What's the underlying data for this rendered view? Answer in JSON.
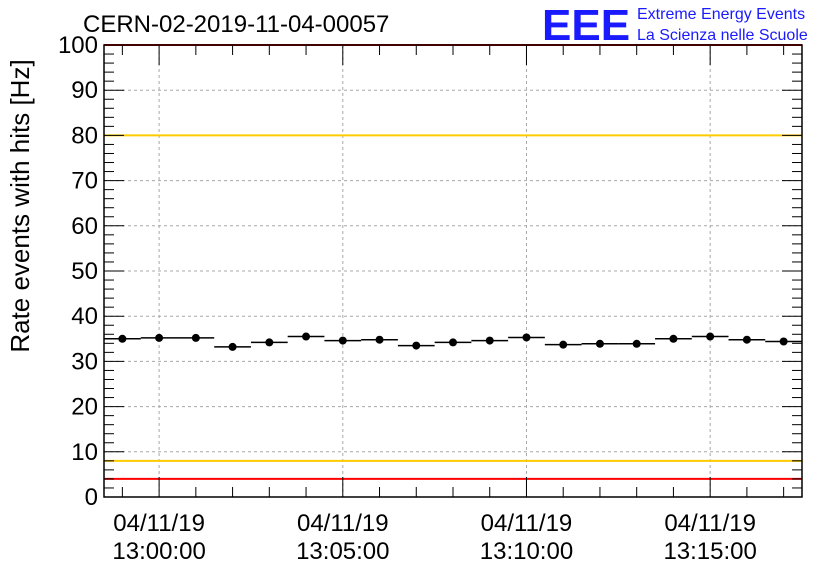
{
  "title": "CERN-02-2019-11-04-00057",
  "logo": {
    "mark": "EEE",
    "line1": "Extreme Energy Events",
    "line2": "La Scienza nelle Scuole",
    "color": "#1a1aff"
  },
  "chart_data": {
    "type": "scatter",
    "title": "CERN-02-2019-11-04-00057",
    "xlabel": "",
    "ylabel": "Rate events with hits [Hz]",
    "ylim": [
      0,
      100
    ],
    "xlim": [
      "2019-11-04 12:58:30",
      "2019-11-04 13:17:30"
    ],
    "yticks": [
      0,
      10,
      20,
      30,
      40,
      50,
      60,
      70,
      80,
      90,
      100
    ],
    "xticks": [
      {
        "t": "2019-11-04 13:00:00",
        "date": "04/11/19",
        "time": "13:00:00"
      },
      {
        "t": "2019-11-04 13:05:00",
        "date": "04/11/19",
        "time": "13:05:00"
      },
      {
        "t": "2019-11-04 13:10:00",
        "date": "04/11/19",
        "time": "13:10:00"
      },
      {
        "t": "2019-11-04 13:15:00",
        "date": "04/11/19",
        "time": "13:15:00"
      }
    ],
    "bin_width_seconds": 60,
    "grid": true,
    "series": [
      {
        "x": [
          "2019-11-04 12:59:00",
          "2019-11-04 13:00:00",
          "2019-11-04 13:01:00",
          "2019-11-04 13:02:00",
          "2019-11-04 13:03:00",
          "2019-11-04 13:04:00",
          "2019-11-04 13:05:00",
          "2019-11-04 13:06:00",
          "2019-11-04 13:07:00",
          "2019-11-04 13:08:00",
          "2019-11-04 13:09:00",
          "2019-11-04 13:10:00",
          "2019-11-04 13:11:00",
          "2019-11-04 13:12:00",
          "2019-11-04 13:13:00",
          "2019-11-04 13:14:00",
          "2019-11-04 13:15:00",
          "2019-11-04 13:16:00",
          "2019-11-04 13:17:00"
        ],
        "y": [
          35.0,
          35.2,
          35.2,
          33.2,
          34.2,
          35.5,
          34.6,
          34.8,
          33.5,
          34.2,
          34.6,
          35.3,
          33.7,
          33.9,
          33.9,
          35.0,
          35.5,
          34.8,
          34.4
        ],
        "color": "#000000"
      }
    ],
    "reference_lines": [
      {
        "y": 100,
        "color": "#ff0000"
      },
      {
        "y": 80,
        "color": "#ffcc00"
      },
      {
        "y": 8,
        "color": "#ffcc00"
      },
      {
        "y": 4,
        "color": "#ff0000"
      }
    ]
  }
}
